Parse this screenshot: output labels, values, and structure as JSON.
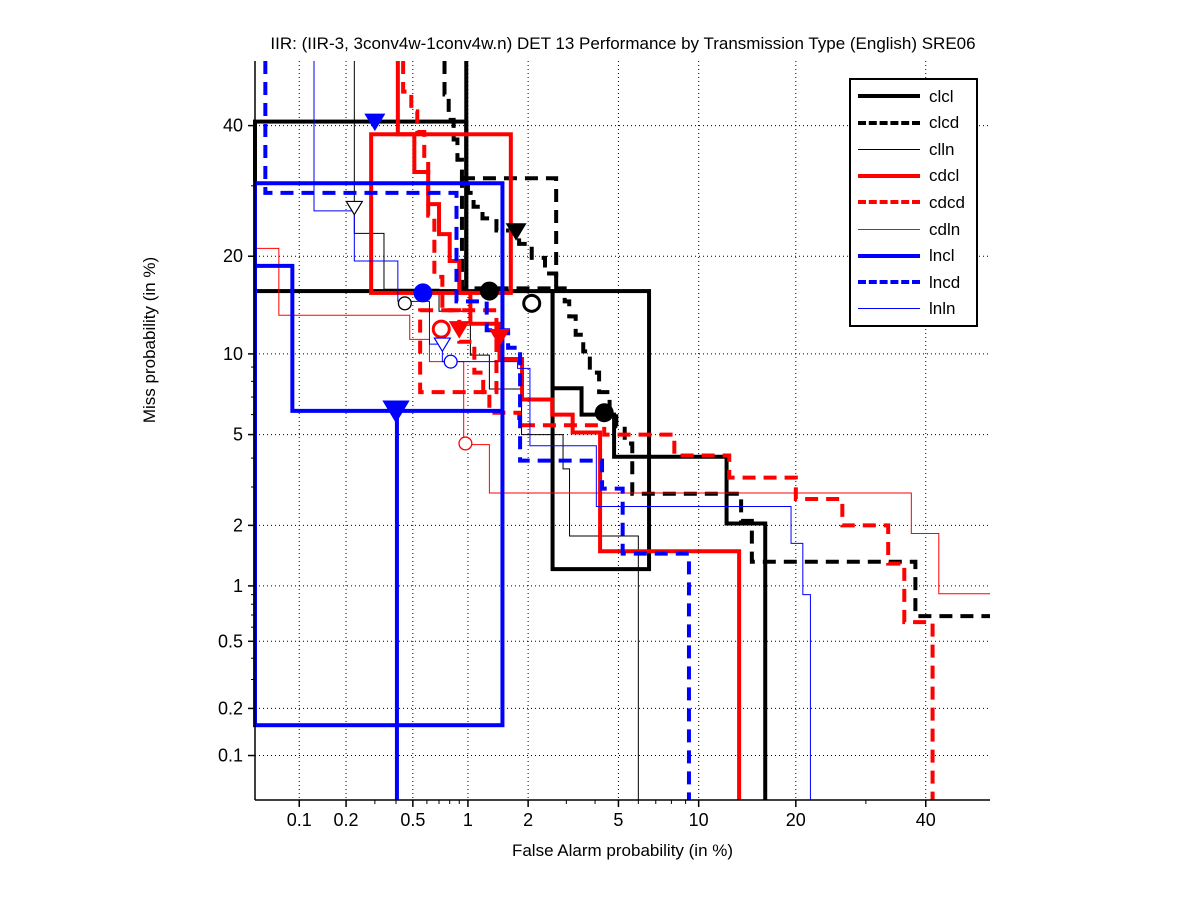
{
  "title": "IIR: (IIR-3, 3conv4w-1conv4w.n) DET 13 Performance by Transmission Type (English) SRE06",
  "axes": {
    "xlabel": "False Alarm probability (in %)",
    "ylabel": "Miss probability (in %)",
    "scale": "probit",
    "xlim": [
      0.05,
      51.5
    ],
    "ylim": [
      0.05,
      51.5
    ],
    "major_ticks": [
      0.1,
      0.2,
      0.5,
      1,
      2,
      5,
      10,
      20,
      40
    ],
    "major_tick_labels": [
      "0.1",
      "0.2",
      "0.5",
      "1",
      "2",
      "5",
      "10",
      "20",
      "40"
    ],
    "minor_ticks": [
      0.3,
      0.4,
      0.6,
      0.7,
      0.8,
      0.9,
      3,
      4,
      6,
      7,
      8,
      9,
      30
    ],
    "grid": "dotted"
  },
  "legend": {
    "entries": [
      {
        "label": "clcl",
        "color": "#000000",
        "dash": "solid",
        "width": 4
      },
      {
        "label": "clcd",
        "color": "#000000",
        "dash": "dashed",
        "width": 4
      },
      {
        "label": "clln",
        "color": "#000000",
        "dash": "solid",
        "width": 1
      },
      {
        "label": "cdcl",
        "color": "#ff0000",
        "dash": "solid",
        "width": 4
      },
      {
        "label": "cdcd",
        "color": "#ff0000",
        "dash": "dashed",
        "width": 4
      },
      {
        "label": "cdln",
        "color": "#ff0000",
        "dash": "solid",
        "width": 1
      },
      {
        "label": "lncl",
        "color": "#0000ff",
        "dash": "solid",
        "width": 4
      },
      {
        "label": "lncd",
        "color": "#0000ff",
        "dash": "dashed",
        "width": 4
      },
      {
        "label": "lnln",
        "color": "#0000ff",
        "dash": "solid",
        "width": 1
      }
    ]
  },
  "colors": {
    "black": "#000000",
    "red": "#ff0000",
    "blue": "#0000ff",
    "grid": "#000000"
  },
  "chart_data": {
    "type": "line",
    "subtype": "DET-curve",
    "title": "IIR: (IIR-3, 3conv4w-1conv4w.n) DET 13 Performance by Transmission Type (English) SRE06",
    "xlabel": "False Alarm probability (in %)",
    "ylabel": "Miss probability (in %)",
    "axis_scale": "probit",
    "xlim_percent": [
      0.05,
      51.5
    ],
    "ylim_percent": [
      0.05,
      51.5
    ],
    "legend_position": "upper-right-inside",
    "series": [
      {
        "name": "clcl",
        "color": "#000000",
        "dash": "solid",
        "width": 4,
        "points": [
          [
            0.98,
            51.5
          ],
          [
            0.98,
            15.9
          ],
          [
            2.6,
            15.9
          ],
          [
            2.6,
            7.55
          ],
          [
            3.5,
            7.55
          ],
          [
            3.5,
            6.0
          ],
          [
            4.8,
            6.0
          ],
          [
            4.8,
            4.05
          ],
          [
            12.4,
            4.05
          ],
          [
            12.4,
            2.04
          ],
          [
            16.35,
            2.04
          ],
          [
            16.35,
            0.05
          ]
        ],
        "boxes": [
          [
            0.05,
            40.7,
            0.98,
            15.9
          ],
          [
            2.6,
            15.9,
            6.6,
            1.22
          ]
        ],
        "markers": [
          {
            "shape": "circle-filled",
            "fa": 1.29,
            "miss": 15.9
          },
          {
            "shape": "circle-open",
            "fa": 2.08,
            "miss": 14.6
          }
        ]
      },
      {
        "name": "clcd",
        "color": "#000000",
        "dash": "dashed",
        "width": 4,
        "points": [
          [
            0.75,
            51.5
          ],
          [
            0.75,
            45.5
          ],
          [
            0.79,
            45.5
          ],
          [
            0.79,
            41
          ],
          [
            0.84,
            41
          ],
          [
            0.84,
            37.6
          ],
          [
            0.88,
            37.6
          ],
          [
            0.88,
            34.2
          ],
          [
            0.93,
            34.2
          ],
          [
            0.93,
            31.2
          ],
          [
            1.0,
            31.2
          ],
          [
            1.0,
            28.9
          ],
          [
            1.07,
            28.9
          ],
          [
            1.07,
            26.8
          ],
          [
            1.19,
            26.8
          ],
          [
            1.19,
            25.1
          ],
          [
            1.4,
            25.1
          ],
          [
            1.4,
            23.4
          ],
          [
            1.81,
            23.4
          ],
          [
            1.81,
            21.6
          ],
          [
            2.08,
            21.6
          ],
          [
            2.08,
            19.8
          ],
          [
            2.4,
            19.8
          ],
          [
            2.4,
            17.9
          ],
          [
            2.7,
            17.9
          ],
          [
            2.7,
            16.2
          ],
          [
            2.95,
            16.2
          ],
          [
            2.95,
            14.8
          ],
          [
            3.09,
            14.8
          ],
          [
            3.09,
            13.3
          ],
          [
            3.3,
            13.3
          ],
          [
            3.3,
            11.6
          ],
          [
            3.56,
            11.6
          ],
          [
            3.56,
            10.2
          ],
          [
            3.8,
            10.2
          ],
          [
            3.8,
            8.6
          ],
          [
            4.16,
            8.6
          ],
          [
            4.16,
            7.3
          ],
          [
            4.6,
            7.3
          ],
          [
            4.6,
            6.2
          ],
          [
            4.9,
            6.2
          ],
          [
            4.9,
            5.4
          ],
          [
            5.3,
            5.4
          ],
          [
            5.3,
            4.6
          ],
          [
            5.68,
            4.6
          ],
          [
            5.68,
            2.8
          ],
          [
            13.8,
            2.8
          ],
          [
            13.8,
            2.1
          ],
          [
            14.9,
            2.1
          ],
          [
            14.9,
            1.33
          ],
          [
            38.2,
            1.33
          ],
          [
            38.2,
            0.69
          ],
          [
            51.5,
            0.69
          ]
        ],
        "boxes": [
          [
            0.93,
            31.2,
            2.7,
            16.2
          ]
        ],
        "markers": [
          {
            "shape": "triangle-down-filled",
            "fa": 1.75,
            "miss": 23.3
          },
          {
            "shape": "circle-filled",
            "fa": 4.37,
            "miss": 6.1
          }
        ]
      },
      {
        "name": "clln",
        "color": "#000000",
        "dash": "solid",
        "width": 1,
        "points": [
          [
            0.225,
            51.5
          ],
          [
            0.225,
            23
          ],
          [
            0.34,
            23
          ],
          [
            0.34,
            16.1
          ],
          [
            0.7,
            16.1
          ],
          [
            0.7,
            13.8
          ],
          [
            1.03,
            13.8
          ],
          [
            1.03,
            9.9
          ],
          [
            1.29,
            9.9
          ],
          [
            1.29,
            7.5
          ],
          [
            1.86,
            7.5
          ],
          [
            1.86,
            5.0
          ],
          [
            2.9,
            5.0
          ],
          [
            2.9,
            3.6
          ],
          [
            3.1,
            3.6
          ],
          [
            3.1,
            1.78
          ],
          [
            6.0,
            1.78
          ],
          [
            6.0,
            0.05
          ]
        ],
        "boxes": [],
        "markers": [
          {
            "shape": "triangle-down-open",
            "fa": 0.225,
            "miss": 26.7
          },
          {
            "shape": "circle-open",
            "fa": 0.45,
            "miss": 14.6
          }
        ]
      },
      {
        "name": "cdcl",
        "color": "#ff0000",
        "dash": "solid",
        "width": 4,
        "points": [
          [
            0.41,
            51.5
          ],
          [
            0.41,
            38.5
          ],
          [
            0.51,
            38.5
          ],
          [
            0.51,
            32.2
          ],
          [
            0.61,
            32.2
          ],
          [
            0.61,
            27.2
          ],
          [
            0.7,
            27.2
          ],
          [
            0.7,
            22.9
          ],
          [
            0.8,
            22.9
          ],
          [
            0.8,
            19.4
          ],
          [
            0.9,
            19.4
          ],
          [
            0.9,
            15.7
          ],
          [
            1.03,
            15.7
          ],
          [
            1.03,
            12.6
          ],
          [
            1.45,
            12.6
          ],
          [
            1.45,
            9.6
          ],
          [
            1.87,
            9.6
          ],
          [
            1.87,
            6.85
          ],
          [
            2.59,
            6.85
          ],
          [
            2.59,
            6.0
          ],
          [
            3.2,
            6.0
          ],
          [
            3.2,
            5.1
          ],
          [
            4.2,
            5.1
          ],
          [
            4.2,
            1.5
          ],
          [
            13.6,
            1.5
          ],
          [
            13.6,
            0.05
          ]
        ],
        "boxes": [
          [
            0.285,
            38.5,
            1.65,
            15.7
          ]
        ],
        "markers": [
          {
            "shape": "circle-open",
            "fa": 0.72,
            "miss": 12.1
          },
          {
            "shape": "triangle-down-filled",
            "fa": 0.9,
            "miss": 12.1
          }
        ]
      },
      {
        "name": "cdcd",
        "color": "#ff0000",
        "dash": "dashed",
        "width": 4,
        "points": [
          [
            0.44,
            51.5
          ],
          [
            0.44,
            46
          ],
          [
            0.49,
            46
          ],
          [
            0.49,
            42.5
          ],
          [
            0.53,
            42.5
          ],
          [
            0.53,
            38.9
          ],
          [
            0.58,
            38.9
          ],
          [
            0.58,
            34.2
          ],
          [
            0.61,
            34.2
          ],
          [
            0.61,
            25.5
          ],
          [
            0.66,
            25.5
          ],
          [
            0.66,
            17.5
          ],
          [
            0.73,
            17.5
          ],
          [
            0.73,
            13.9
          ],
          [
            0.9,
            13.9
          ],
          [
            0.9,
            11.0
          ],
          [
            1.08,
            11.0
          ],
          [
            1.08,
            8.6
          ],
          [
            1.2,
            8.6
          ],
          [
            1.2,
            7.3
          ],
          [
            1.29,
            7.3
          ],
          [
            1.29,
            6.1
          ],
          [
            1.81,
            6.1
          ],
          [
            1.81,
            5.45
          ],
          [
            4.37,
            5.45
          ],
          [
            4.37,
            5.0
          ],
          [
            8.2,
            5.0
          ],
          [
            8.2,
            4.1
          ],
          [
            12.65,
            4.1
          ],
          [
            12.65,
            3.3
          ],
          [
            20,
            3.3
          ],
          [
            20,
            2.65
          ],
          [
            26.4,
            2.65
          ],
          [
            26.4,
            2.0
          ],
          [
            33.6,
            2.0
          ],
          [
            33.6,
            1.3
          ],
          [
            36.3,
            1.3
          ],
          [
            36.3,
            0.64
          ],
          [
            41.2,
            0.64
          ],
          [
            41.2,
            0.05
          ]
        ],
        "boxes": [
          [
            0.55,
            13.9,
            1.4,
            7.3
          ]
        ],
        "markers": [
          {
            "shape": "triangle-down-filled",
            "fa": 1.45,
            "miss": 11.4
          }
        ]
      },
      {
        "name": "cdln",
        "color": "#ff0000",
        "dash": "solid",
        "width": 1,
        "points": [
          [
            0.05,
            21
          ],
          [
            0.073,
            21
          ],
          [
            0.073,
            13.4
          ],
          [
            0.48,
            13.4
          ],
          [
            0.48,
            11.2
          ],
          [
            0.62,
            11.2
          ],
          [
            0.62,
            9.4
          ],
          [
            0.95,
            9.4
          ],
          [
            0.95,
            4.55
          ],
          [
            1.29,
            4.55
          ],
          [
            1.29,
            2.82
          ],
          [
            37.5,
            2.82
          ],
          [
            37.5,
            1.83
          ],
          [
            42.3,
            1.83
          ],
          [
            42.3,
            0.91
          ],
          [
            51.5,
            0.91
          ]
        ],
        "boxes": [],
        "markers": [
          {
            "shape": "circle-open",
            "fa": 0.97,
            "miss": 4.6
          }
        ]
      },
      {
        "name": "lncl",
        "color": "#0000ff",
        "dash": "solid",
        "width": 4,
        "points": [
          [
            0.05,
            18.8
          ],
          [
            0.09,
            18.8
          ],
          [
            0.09,
            6.2
          ],
          [
            0.405,
            6.2
          ],
          [
            0.405,
            0.05
          ]
        ],
        "boxes": [
          [
            0.05,
            30.4,
            1.5,
            0.157
          ]
        ],
        "extra_segments": [
          [
            [
              0.405,
              6.2
            ],
            [
              1.5,
              6.2
            ]
          ]
        ],
        "markers": [
          {
            "shape": "triangle-down-filled",
            "fa": 0.4,
            "miss": 6.2,
            "size": 1.3
          }
        ]
      },
      {
        "name": "lncd",
        "color": "#0000ff",
        "dash": "dashed",
        "width": 4,
        "points": [
          [
            0.059,
            51.5
          ],
          [
            0.059,
            28.9
          ],
          [
            0.87,
            28.9
          ],
          [
            0.87,
            14.8
          ],
          [
            1.25,
            14.8
          ],
          [
            1.25,
            12.0
          ],
          [
            1.6,
            12.0
          ],
          [
            1.6,
            10.5
          ],
          [
            1.83,
            10.5
          ],
          [
            1.83,
            3.9
          ],
          [
            4.28,
            3.9
          ],
          [
            4.28,
            2.95
          ],
          [
            5.2,
            2.95
          ],
          [
            5.2,
            1.46
          ],
          [
            9.25,
            1.46
          ],
          [
            9.25,
            0.05
          ]
        ],
        "boxes": [],
        "markers": [
          {
            "shape": "triangle-down-filled",
            "fa": 0.3,
            "miss": 40.7
          },
          {
            "shape": "circle-filled",
            "fa": 0.57,
            "miss": 15.7
          }
        ]
      },
      {
        "name": "lnln",
        "color": "#0000ff",
        "dash": "solid",
        "width": 1,
        "points": [
          [
            0.125,
            51.5
          ],
          [
            0.125,
            26.2
          ],
          [
            0.225,
            26.2
          ],
          [
            0.225,
            19.4
          ],
          [
            0.41,
            19.4
          ],
          [
            0.41,
            14.8
          ],
          [
            0.62,
            14.8
          ],
          [
            0.62,
            10.8
          ],
          [
            0.73,
            10.8
          ],
          [
            0.73,
            9.4
          ],
          [
            1.78,
            9.4
          ],
          [
            1.78,
            8.9
          ],
          [
            2.04,
            8.9
          ],
          [
            2.04,
            4.5
          ],
          [
            4.05,
            4.5
          ],
          [
            4.05,
            2.45
          ],
          [
            19.4,
            2.45
          ],
          [
            19.4,
            1.64
          ],
          [
            20.9,
            1.64
          ],
          [
            20.9,
            0.9
          ],
          [
            21.9,
            0.9
          ],
          [
            21.9,
            0.05
          ]
        ],
        "boxes": [],
        "markers": [
          {
            "shape": "triangle-down-open",
            "fa": 0.73,
            "miss": 10.8
          },
          {
            "shape": "circle-open",
            "fa": 0.81,
            "miss": 9.4
          }
        ]
      }
    ]
  }
}
